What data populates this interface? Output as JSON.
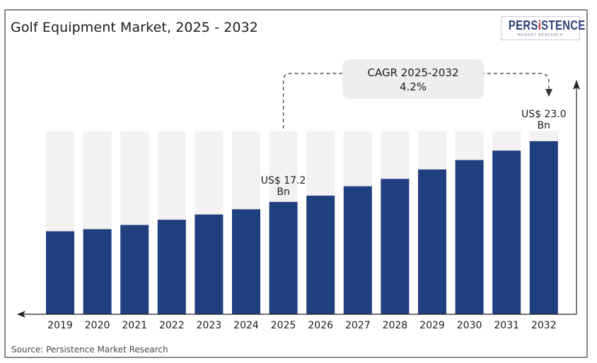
{
  "title": "Golf Equipment Market, 2025 - 2032",
  "logo": {
    "main_prefix": "PERS",
    "main_highlight": "i",
    "main_suffix": "STENCE",
    "sub": "MARKET RESEARCH"
  },
  "source": "Source: Persistence Market Research",
  "colors": {
    "bar": "#1f3f7f",
    "bar_background": "#f3f1f2",
    "cagr_box": "#efeded",
    "text": "#1b1b1b"
  },
  "chart_data": {
    "type": "bar",
    "title": "Golf Equipment Market, 2025 - 2032",
    "xlabel": "",
    "ylabel": "",
    "unit": "US$ Bn",
    "categories": [
      "2019",
      "2020",
      "2021",
      "2022",
      "2023",
      "2024",
      "2025",
      "2026",
      "2027",
      "2028",
      "2029",
      "2030",
      "2031",
      "2032"
    ],
    "values": [
      14.4,
      14.6,
      15.0,
      15.5,
      16.0,
      16.5,
      17.2,
      17.8,
      18.7,
      19.4,
      20.3,
      21.2,
      22.1,
      23.0
    ],
    "ylim": [
      0,
      28.5
    ],
    "grid": false,
    "legend": "none",
    "annotations": [
      {
        "category": "2025",
        "line1": "US$ 17.2",
        "line2": "Bn"
      },
      {
        "category": "2032",
        "line1": "US$ 23.0",
        "line2": "Bn"
      }
    ],
    "cagr": {
      "label": "CAGR 2025-2032",
      "value": "4.2%",
      "from": "2025",
      "to": "2032"
    }
  }
}
